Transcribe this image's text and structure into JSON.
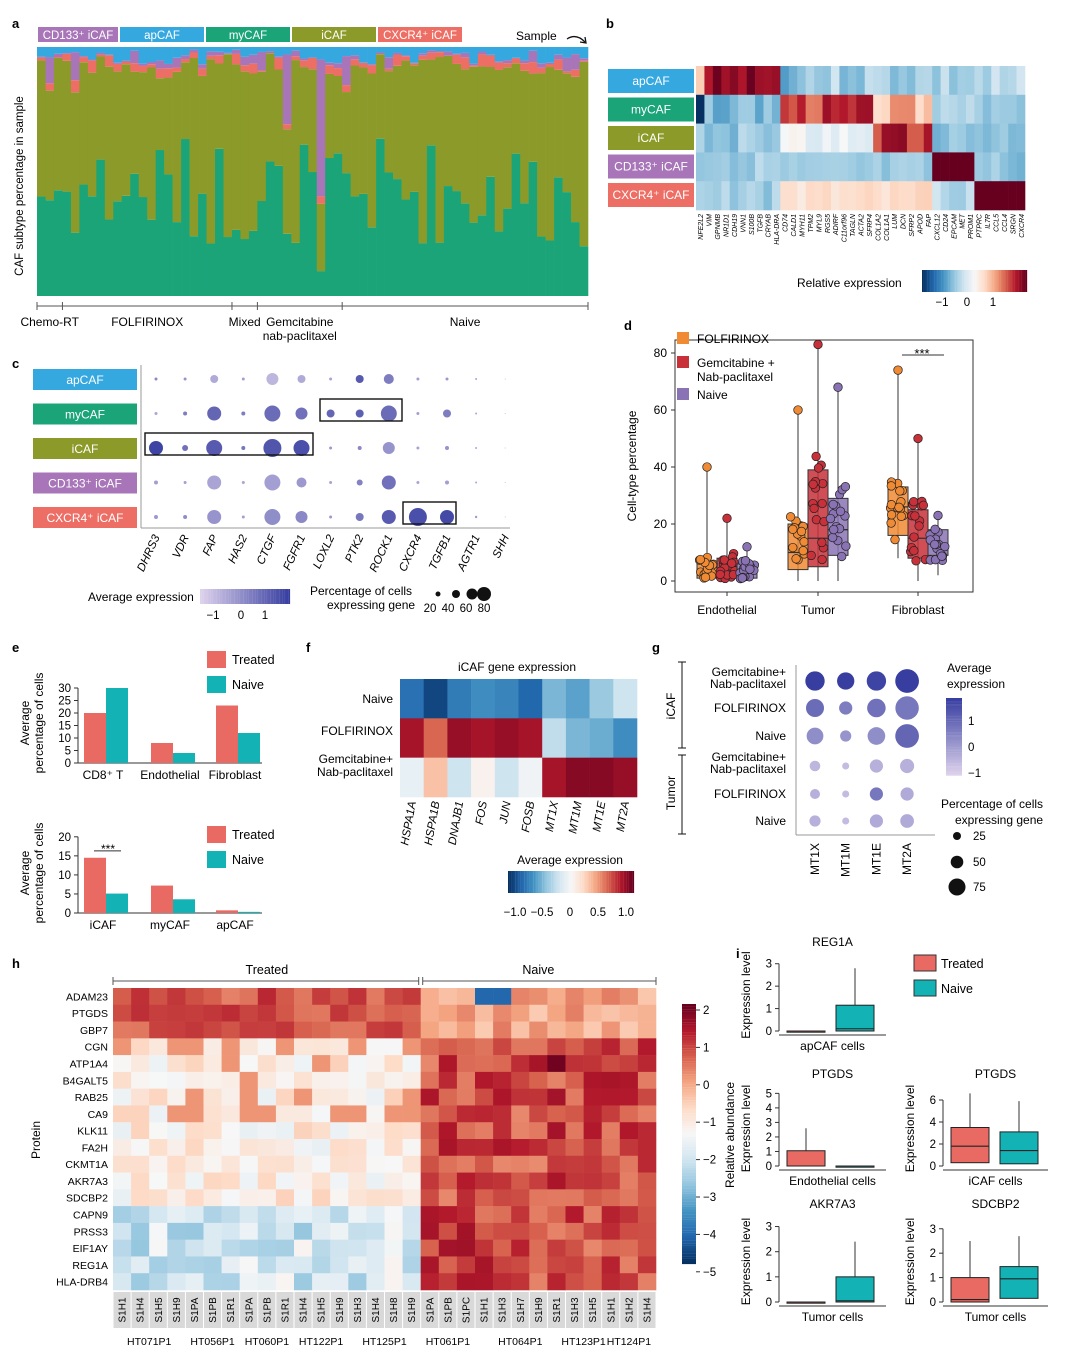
{
  "panel_letters": [
    "a",
    "b",
    "c",
    "d",
    "e",
    "f",
    "g",
    "h",
    "i"
  ],
  "colors": {
    "apCAF": "#35a8e0",
    "myCAF": "#1aa478",
    "iCAF": "#8b9a28",
    "CD133": "#a775b8",
    "CXCR4": "#ec6e65",
    "FOLFIRINOX": "#f08a33",
    "Gem": "#c8303a",
    "NaiveD": "#8a73b4",
    "Treated": "#e86a63",
    "NaiveE": "#13b2b5"
  },
  "chart_data": [
    {
      "panel": "a",
      "type": "bar",
      "title": "",
      "ylabel": "CAF subtype percentage in sample",
      "sample_label": "Sample",
      "legend": [
        "CD133⁺ iCAF",
        "apCAF",
        "myCAF",
        "iCAF",
        "CXCR4⁺ iCAF"
      ],
      "groups": [
        {
          "name": "Chemo-RT",
          "n": 3
        },
        {
          "name": "FOLFIRINOX",
          "n": 20
        },
        {
          "name": "Mixed",
          "n": 3
        },
        {
          "name": "Gemcitabine\nnab-paclitaxel",
          "n": 10
        },
        {
          "name": "Naive",
          "n": 29
        }
      ],
      "note": "stacked composition per sample (65 samples); order bottom→top: myCAF, iCAF, CXCR4⁺ iCAF, CD133⁺ iCAF, apCAF"
    },
    {
      "panel": "b",
      "type": "heatmap",
      "rows": [
        "apCAF",
        "myCAF",
        "iCAF",
        "CD133⁺ iCAF",
        "CXCR4⁺ iCAF"
      ],
      "genes": [
        "NFE2L2",
        "VIM",
        "GPNMB",
        "NR1D1",
        "CDH19",
        "VNN1",
        "S100B",
        "TGFB",
        "CRYAB",
        "HLA-DRA",
        "CD74",
        "CALD1",
        "MYH11",
        "TPM2",
        "MYL9",
        "RGS5",
        "ADIRF",
        "C11orf96",
        "TAGLN",
        "ACTA2",
        "SFRP4",
        "COL1A2",
        "COL1A1",
        "LUM",
        "DCN",
        "SFRP2",
        "APOD",
        "FAP",
        "CXCL12",
        "CD24",
        "EPCAM",
        "MET",
        "PROM1",
        "PTPRC",
        "IL7R",
        "CCL5",
        "CCL4",
        "SRGN",
        "CXCR4"
      ],
      "colorbar": {
        "label": "Relative expression",
        "ticks": [
          "−1",
          "0",
          "1"
        ]
      }
    },
    {
      "panel": "c",
      "type": "scatter",
      "subtype": "dot",
      "rows": [
        "apCAF",
        "myCAF",
        "iCAF",
        "CD133⁺ iCAF",
        "CXCR4⁺ iCAF"
      ],
      "genes": [
        "DHRS3",
        "VDR",
        "FAP",
        "HAS2",
        "CTGF",
        "FGFR1",
        "LOXL2",
        "PTK2",
        "ROCK1",
        "CXCR4",
        "TGFB1",
        "AGTR1",
        "SHH"
      ],
      "colorbar": {
        "label": "Average expression",
        "ticks": [
          "−1",
          "0",
          "1"
        ]
      },
      "size_legend": {
        "label": [
          "Percentage of cells",
          "expressing gene"
        ],
        "values": [
          "20",
          "40",
          "60",
          "80"
        ]
      }
    },
    {
      "panel": "d",
      "type": "scatter",
      "subtype": "box",
      "ylabel": "Cell-type percentage",
      "ylim": [
        0,
        85
      ],
      "yticks": [
        "0",
        "20",
        "40",
        "60",
        "80"
      ],
      "categories": [
        "Endothelial",
        "Tumor",
        "Fibroblast"
      ],
      "series": [
        {
          "name": "FOLFIRINOX",
          "q": [
            [
              0,
              1,
              3,
              7,
              40
            ],
            [
              0,
              4,
              10,
              20,
              60
            ],
            [
              8,
              16,
              26,
              33,
              74
            ]
          ]
        },
        {
          "name": "Gemcitabine +\nNab-paclitaxel",
          "q": [
            [
              0,
              1,
              4,
              8,
              22
            ],
            [
              0,
              5,
              15,
              39,
              83
            ],
            [
              0,
              8,
              15,
              25,
              50
            ]
          ]
        },
        {
          "name": "Naive",
          "q": [
            [
              0,
              1,
              3,
              6,
              12
            ],
            [
              0,
              9,
              18,
              29,
              68
            ],
            [
              2,
              9,
              13,
              18,
              23
            ]
          ]
        }
      ],
      "annotation": "***"
    },
    {
      "panel": "e1",
      "type": "bar",
      "ylabel": [
        "Average",
        "percentage of cells"
      ],
      "ylim": [
        0,
        32
      ],
      "yticks": [
        "0",
        "5",
        "10",
        "15",
        "20",
        "25",
        "30"
      ],
      "categories": [
        "CD8⁺ T",
        "Endothelial",
        "Fibroblast"
      ],
      "series": [
        {
          "name": "Treated",
          "values": [
            20,
            8,
            23
          ]
        },
        {
          "name": "Naive",
          "values": [
            30,
            4,
            12
          ]
        }
      ]
    },
    {
      "panel": "e2",
      "type": "bar",
      "ylabel": [
        "Average",
        "percentage of cells"
      ],
      "ylim": [
        0,
        21
      ],
      "yticks": [
        "0",
        "5",
        "10",
        "15",
        "20"
      ],
      "categories": [
        "iCAF",
        "myCAF",
        "apCAF"
      ],
      "series": [
        {
          "name": "Treated",
          "values": [
            14.5,
            7.2,
            0.7
          ]
        },
        {
          "name": "Naive",
          "values": [
            5.1,
            3.6,
            0.3
          ]
        }
      ],
      "annotation": "***"
    },
    {
      "panel": "f",
      "type": "heatmap",
      "title": "iCAF gene expression",
      "rows": [
        "Naive",
        "FOLFIRINOX",
        "Gemcitabine+\nNab-paclitaxel"
      ],
      "genes": [
        "HSPA1A",
        "HSPA1B",
        "DNAJB1",
        "FOS",
        "JUN",
        "FOSB",
        "MT1X",
        "MT1M",
        "MT1E",
        "MT2A"
      ],
      "values": [
        [
          -0.9,
          -1.1,
          -0.85,
          -0.75,
          -0.8,
          -0.95,
          -0.55,
          -0.65,
          -0.45,
          -0.25
        ],
        [
          1.0,
          0.7,
          1.05,
          1.0,
          1.05,
          1.0,
          -0.3,
          -0.55,
          -0.6,
          -0.75
        ],
        [
          -0.1,
          0.35,
          -0.25,
          0.05,
          -0.25,
          -0.05,
          1.0,
          1.1,
          1.1,
          1.05
        ]
      ],
      "colorbar": {
        "label": "Average expression",
        "ticks": [
          "−1.0",
          "−0.5",
          "0",
          "0.5",
          "1.0"
        ]
      }
    },
    {
      "panel": "g",
      "type": "scatter",
      "subtype": "dot",
      "groups": [
        "iCAF",
        "Tumor"
      ],
      "rows": [
        "Gemcitabine+\nNab-paclitaxel",
        "FOLFIRINOX",
        "Naive",
        "Gemcitabine+\nNab-paclitaxel",
        "FOLFIRINOX",
        "Naive"
      ],
      "genes": [
        "MT1X",
        "MT1M",
        "MT1E",
        "MT2A"
      ],
      "values": [
        [
          [
            1.3,
            60
          ],
          [
            1.4,
            48
          ],
          [
            1.2,
            60
          ],
          [
            1.4,
            90
          ]
        ],
        [
          [
            0.5,
            52
          ],
          [
            0.2,
            28
          ],
          [
            0.4,
            55
          ],
          [
            0.3,
            88
          ]
        ],
        [
          [
            -0.1,
            45
          ],
          [
            -0.2,
            20
          ],
          [
            -0.1,
            50
          ],
          [
            0.6,
            90
          ]
        ],
        [
          [
            -0.8,
            18
          ],
          [
            -0.9,
            8
          ],
          [
            -0.7,
            28
          ],
          [
            -0.7,
            32
          ]
        ],
        [
          [
            -0.7,
            16
          ],
          [
            -0.9,
            8
          ],
          [
            0.3,
            28
          ],
          [
            -0.6,
            28
          ]
        ],
        [
          [
            -0.7,
            20
          ],
          [
            -0.9,
            8
          ],
          [
            -0.6,
            28
          ],
          [
            -0.6,
            30
          ]
        ]
      ],
      "colorbar": {
        "label": [
          "Average",
          "expression"
        ],
        "ticks": [
          "1",
          "0",
          "−1"
        ]
      },
      "size_legend": {
        "label": [
          "Percentage of cells",
          "expressing gene"
        ],
        "values": [
          "25",
          "50",
          "75"
        ]
      }
    },
    {
      "panel": "h",
      "type": "heatmap",
      "ylabel": "Protein",
      "groups": [
        "Treated",
        "Naive"
      ],
      "proteins": [
        "ADAM23",
        "PTGDS",
        "GBP7",
        "CGN",
        "ATP1A4",
        "B4GALT5",
        "RAB25",
        "CA9",
        "KLK11",
        "FA2H",
        "CKMT1A",
        "AKR7A3",
        "SDCBP2",
        "CAPN9",
        "PRSS3",
        "EIF1AY",
        "REG1A",
        "HLA-DRB4"
      ],
      "columns": [
        "S1H1",
        "S1H4",
        "S1H5",
        "S1H9",
        "S1PA",
        "S1PB",
        "S1R1",
        "S1PA",
        "S1PB",
        "S1R1",
        "S1H4",
        "S1H5",
        "S1H9",
        "S1H3",
        "S1H4",
        "S1H8",
        "S1H9",
        "S1PA",
        "S1PB",
        "S1PC",
        "S1H1",
        "S1H3",
        "S1H7",
        "S1H9",
        "S1R1",
        "S1H3",
        "S1H5",
        "S1H1",
        "S1H2",
        "S1H4"
      ],
      "patients": [
        {
          "name": "HT071P1",
          "n": 4
        },
        {
          "name": "HT056P1",
          "n": 3
        },
        {
          "name": "HT060P1",
          "n": 3
        },
        {
          "name": "HT122P1",
          "n": 3
        },
        {
          "name": "HT125P1",
          "n": 4
        },
        {
          "name": "HT061P1",
          "n": 3
        },
        {
          "name": "HT064P1",
          "n": 5
        },
        {
          "name": "HT123P1",
          "n": 2
        },
        {
          "name": "HT124P1",
          "n": 3
        }
      ],
      "colorbar": {
        "label": "Relative abundance",
        "ticks": [
          "2",
          "1",
          "0",
          "−1",
          "−2",
          "−3",
          "−4",
          "−5"
        ]
      }
    },
    {
      "panel": "i",
      "type": "scatter",
      "subtype": "box",
      "ylabel": "Expression level",
      "legend": [
        "Treated",
        "Naive"
      ],
      "plots": [
        {
          "title": "REG1A",
          "xlabel": "apCAF cells",
          "yticks": [
            "0",
            "1",
            "2",
            "3"
          ],
          "ymax": 3.3,
          "treated": [
            0,
            0,
            0,
            0,
            0
          ],
          "naive": [
            0,
            0,
            0.1,
            1.15,
            2.8
          ]
        },
        {
          "title": "PTGDS",
          "xlabel": "Endothelial cells",
          "yticks": [
            "0",
            "1",
            "2",
            "3",
            "4",
            "5"
          ],
          "ymax": 5.3,
          "treated": [
            0,
            0,
            0,
            1.05,
            2.6
          ],
          "naive": [
            0,
            0,
            0,
            0,
            0
          ]
        },
        {
          "title": "PTGDS",
          "xlabel": "iCAF cells",
          "yticks": [
            "0",
            "2",
            "4",
            "6"
          ],
          "ymax": 7,
          "treated": [
            0,
            0.3,
            1.8,
            3.5,
            6.6
          ],
          "naive": [
            0,
            0.2,
            1.4,
            3.1,
            5.9
          ]
        },
        {
          "title": "AKR7A3",
          "xlabel": "Tumor cells",
          "yticks": [
            "0",
            "1",
            "2",
            "3"
          ],
          "ymax": 3.3,
          "treated": [
            0,
            0,
            0,
            0,
            0
          ],
          "naive": [
            0,
            0,
            0.05,
            1.0,
            2.4
          ]
        },
        {
          "title": "SDCBP2",
          "xlabel": "Tumor cells",
          "yticks": [
            "0",
            "1",
            "2",
            "3"
          ],
          "ymax": 3.4,
          "treated": [
            0,
            0,
            0.1,
            1.0,
            2.5
          ],
          "naive": [
            0,
            0.15,
            0.95,
            1.45,
            2.7
          ]
        }
      ]
    }
  ]
}
